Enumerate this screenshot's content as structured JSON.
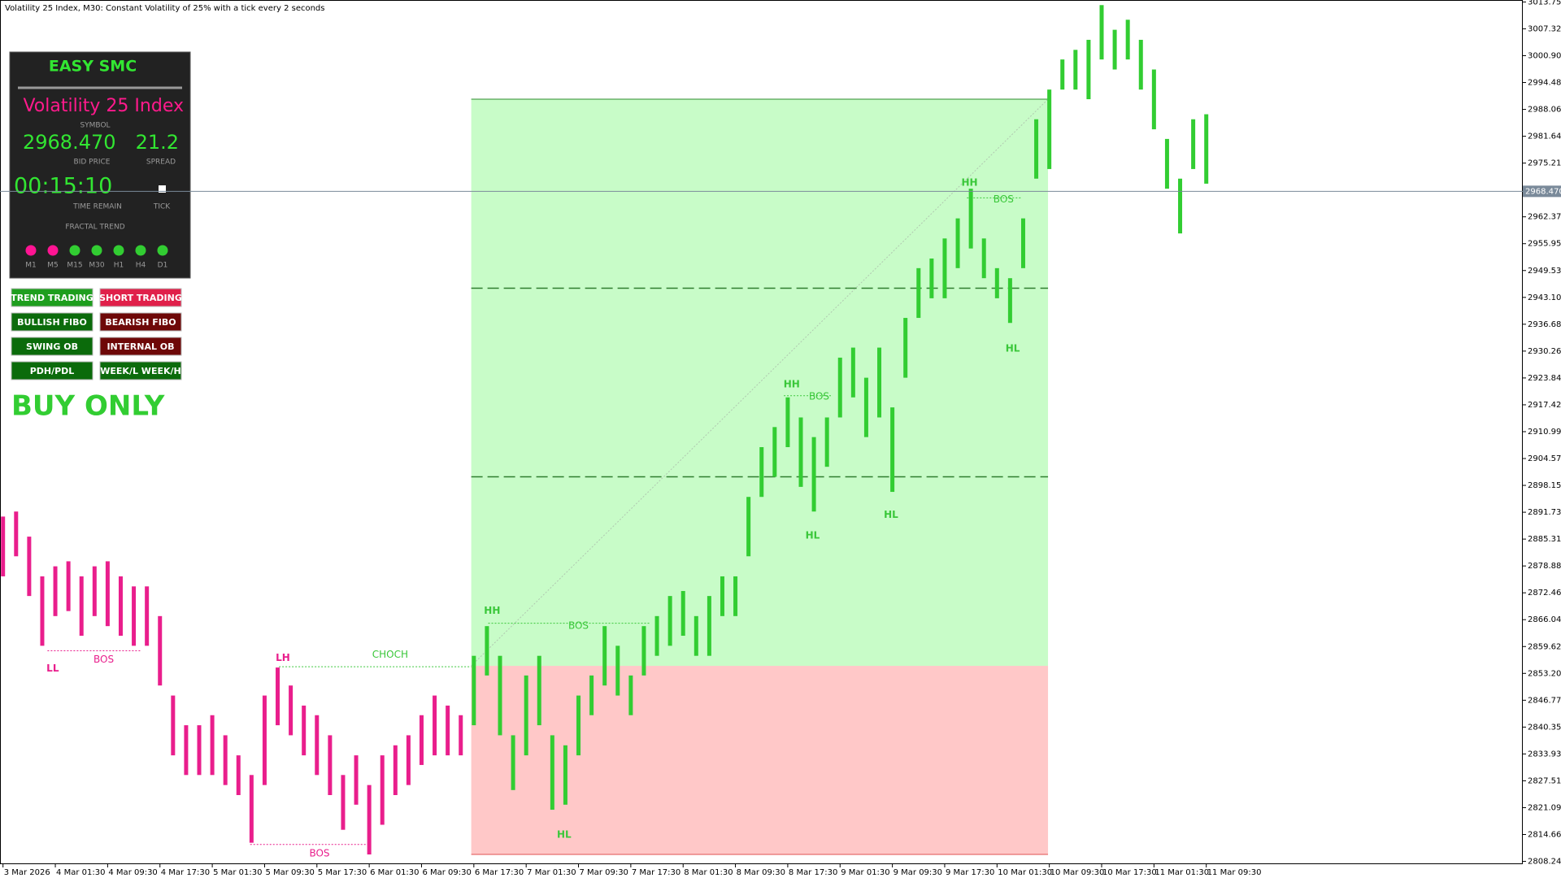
{
  "header": "Volatility 25 Index, M30:  Constant Volatility of 25% with a tick every 2 seconds",
  "panel": {
    "title": "EASY SMC",
    "symbol": "Volatility 25 Index",
    "symbol_label": "SYMBOL",
    "bid": "2968.470",
    "bid_label": "BID PRICE",
    "spread": "21.2",
    "spread_label": "SPREAD",
    "time": "00:15:10",
    "time_label": "TIME REMAIN",
    "tick_label": "TICK",
    "trend_label": "FRACTAL TREND",
    "trend": [
      {
        "name": "M1",
        "color": "#ff1493"
      },
      {
        "name": "M5",
        "color": "#ff1493"
      },
      {
        "name": "M15",
        "color": "#32cd32"
      },
      {
        "name": "M30",
        "color": "#32cd32"
      },
      {
        "name": "H1",
        "color": "#32cd32"
      },
      {
        "name": "H4",
        "color": "#32cd32"
      },
      {
        "name": "D1",
        "color": "#32cd32"
      }
    ],
    "buttons": [
      {
        "label": "TREND TRADING",
        "color": "#1e9e1e"
      },
      {
        "label": "SHORT TRADING",
        "color": "#e0204a"
      },
      {
        "label": "BULLISH FIBO",
        "color": "#0b6b0b"
      },
      {
        "label": "BEARISH FIBO",
        "color": "#6e0808"
      },
      {
        "label": "SWING OB",
        "color": "#0b6b0b"
      },
      {
        "label": "INTERNAL OB",
        "color": "#6e0808"
      },
      {
        "label": "PDH/PDL",
        "color": "#0b6b0b"
      },
      {
        "label": "WEEK/L WEEK/H",
        "color": "#0b6b0b"
      }
    ],
    "mode": "BUY ONLY"
  },
  "chart_data": {
    "type": "hlbar",
    "series": [
      {
        "color": "#e91e8c",
        "high": [
          2890.7,
          2891.9,
          2885.9,
          2876.4,
          2878.8,
          2880.0,
          2876.4,
          2878.8,
          2880.0,
          2876.4,
          2874.0,
          2874.0,
          2866.9,
          2847.9,
          2840.8,
          2840.8,
          2843.2,
          2838.4,
          2833.6,
          2828.9,
          2847.9,
          2854.6,
          2850.3,
          2845.5,
          2843.2,
          2838.4,
          2828.9,
          2833.6,
          2826.5,
          2833.6,
          2836.0,
          2838.4,
          2843.2,
          2847.9,
          2845.5,
          2843.2
        ],
        "low": [
          2876.4,
          2881.2,
          2871.7,
          2859.8,
          2866.9,
          2868.1,
          2862.2,
          2866.9,
          2864.5,
          2862.2,
          2859.8,
          2859.8,
          2850.3,
          2833.6,
          2828.9,
          2828.9,
          2828.9,
          2826.5,
          2824.1,
          2812.7,
          2826.5,
          2840.8,
          2838.4,
          2833.6,
          2828.9,
          2824.1,
          2815.8,
          2821.8,
          2809.9,
          2817.0,
          2824.1,
          2826.5,
          2831.3,
          2833.6,
          2833.6,
          2833.6
        ]
      },
      {
        "color": "#32cd32",
        "high": [
          2857.4,
          2864.5,
          2857.4,
          2838.4,
          2852.7,
          2857.4,
          2838.4,
          2836.0,
          2847.9,
          2852.7,
          2864.5,
          2859.8,
          2852.7,
          2864.5,
          2866.9,
          2871.7,
          2872.9,
          2866.9,
          2871.7,
          2876.4,
          2876.4,
          2895.4,
          2907.3,
          2912.1,
          2919.2,
          2914.4,
          2909.7,
          2914.4,
          2928.7,
          2931.1,
          2923.9,
          2931.1,
          2916.8,
          2938.2,
          2950.1,
          2952.4,
          2957.2,
          2962.0,
          2969.1,
          2957.2,
          2950.1,
          2947.7,
          2962.0,
          2985.7,
          2992.8,
          3000.0,
          3002.3,
          3004.7,
          3013.0,
          3007.1,
          3009.5,
          3004.7,
          2997.6,
          2981.0,
          2971.5,
          2985.7,
          2986.9
        ],
        "low": [
          2840.8,
          2852.7,
          2838.4,
          2825.3,
          2833.6,
          2840.8,
          2820.6,
          2821.8,
          2833.6,
          2843.2,
          2850.3,
          2847.9,
          2843.2,
          2852.7,
          2857.4,
          2859.8,
          2862.2,
          2857.4,
          2857.4,
          2866.9,
          2866.9,
          2881.2,
          2895.4,
          2900.2,
          2907.3,
          2897.8,
          2891.9,
          2902.6,
          2914.4,
          2919.2,
          2909.7,
          2914.4,
          2896.6,
          2923.9,
          2938.2,
          2942.9,
          2942.9,
          2950.1,
          2954.8,
          2947.7,
          2942.9,
          2937.0,
          2950.1,
          2971.5,
          2973.8,
          2992.8,
          2992.8,
          2990.5,
          3000.0,
          2997.6,
          3000.0,
          2992.8,
          2983.3,
          2969.1,
          2958.4,
          2973.8,
          2970.3
        ]
      }
    ],
    "xlim": [
      -0.23,
      116.2
    ],
    "ylim": [
      2807.77,
      3014.22
    ],
    "yticks": [
      3013.751,
      3007.329,
      3000.907,
      2994.485,
      2988.063,
      2981.641,
      2975.219,
      2962.375,
      2955.953,
      2949.531,
      2943.109,
      2936.687,
      2930.265,
      2923.843,
      2917.421,
      2910.999,
      2904.577,
      2898.155,
      2891.733,
      2885.311,
      2878.889,
      2872.467,
      2866.045,
      2859.623,
      2853.201,
      2846.779,
      2840.357,
      2833.935,
      2827.513,
      2821.091,
      2814.669,
      2808.247
    ],
    "xticks": [
      {
        "value": 0,
        "label": "3 Mar 2026"
      },
      {
        "value": 4,
        "label": "4 Mar 01:30"
      },
      {
        "value": 8,
        "label": "4 Mar 09:30"
      },
      {
        "value": 12,
        "label": "4 Mar 17:30"
      },
      {
        "value": 16,
        "label": "5 Mar 01:30"
      },
      {
        "value": 20,
        "label": "5 Mar 09:30"
      },
      {
        "value": 24,
        "label": "5 Mar 17:30"
      },
      {
        "value": 28,
        "label": "6 Mar 01:30"
      },
      {
        "value": 32,
        "label": "6 Mar 09:30"
      },
      {
        "value": 36,
        "label": "6 Mar 17:30"
      },
      {
        "value": 40,
        "label": "7 Mar 01:30"
      },
      {
        "value": 44,
        "label": "7 Mar 09:30"
      },
      {
        "value": 48,
        "label": "7 Mar 17:30"
      },
      {
        "value": 52,
        "label": "8 Mar 01:30"
      },
      {
        "value": 56,
        "label": "8 Mar 09:30"
      },
      {
        "value": 60,
        "label": "8 Mar 17:30"
      },
      {
        "value": 64,
        "label": "9 Mar 01:30"
      },
      {
        "value": 68,
        "label": "9 Mar 09:30"
      },
      {
        "value": 72,
        "label": "9 Mar 17:30"
      },
      {
        "value": 76,
        "label": "10 Mar 01:30"
      },
      {
        "value": 80,
        "label": "10 Mar 09:30"
      },
      {
        "value": 84,
        "label": "10 Mar 17:30"
      },
      {
        "value": 88,
        "label": "11 Mar 01:30"
      },
      {
        "value": 92,
        "label": "11 Mar 09:30"
      }
    ],
    "current_price": {
      "value": 2968.47,
      "label": "2968.470"
    },
    "zones": [
      {
        "x": [
          35.8,
          79.9
        ],
        "y": [
          2855.0,
          2990.5
        ],
        "color": "#c8fcc8"
      },
      {
        "x": [
          35.8,
          79.9
        ],
        "y": [
          2809.9,
          2855.0
        ],
        "color": "#ffc8c8"
      }
    ],
    "lines": [
      {
        "x": [
          35.8,
          79.9
        ],
        "y": [
          2990.5,
          2990.5
        ],
        "color": "#2e8b2e",
        "dash": "solid"
      },
      {
        "x": [
          35.8,
          79.9
        ],
        "y": [
          2945.3,
          2945.3
        ],
        "color": "#2e7d2e",
        "dash": "dashed"
      },
      {
        "x": [
          35.8,
          79.9
        ],
        "y": [
          2900.2,
          2900.2
        ],
        "color": "#2e7d2e",
        "dash": "dashed"
      },
      {
        "x": [
          35.8,
          79.9
        ],
        "y": [
          2855.0,
          2990.5
        ],
        "color": "#b0c8b0",
        "dash": "dotted"
      },
      {
        "x": [
          35.8,
          79.9
        ],
        "y": [
          2809.9,
          2809.9
        ],
        "color": "#e05050",
        "dash": "solid"
      },
      {
        "x": [
          3.4,
          10.5
        ],
        "y": [
          2858.6,
          2858.6
        ],
        "color": "#e91e8c",
        "dash": "dotted"
      },
      {
        "x": [
          18.9,
          28.1
        ],
        "y": [
          2812.3,
          2812.3
        ],
        "color": "#e91e8c",
        "dash": "dotted"
      },
      {
        "x": [
          21.1,
          35.8
        ],
        "y": [
          2854.8,
          2854.8
        ],
        "color": "#3ac73a",
        "dash": "dotted"
      },
      {
        "x": [
          37.1,
          49.5
        ],
        "y": [
          2865.2,
          2865.2
        ],
        "color": "#3ac73a",
        "dash": "dotted"
      },
      {
        "x": [
          59.7,
          63.3
        ],
        "y": [
          2919.6,
          2919.6
        ],
        "color": "#3ac73a",
        "dash": "dotted"
      },
      {
        "x": [
          73.7,
          77.9
        ],
        "y": [
          2966.9,
          2966.9
        ],
        "color": "#3ac73a",
        "dash": "dotted"
      }
    ],
    "annotations": [
      {
        "text": "LL",
        "x": 3.8,
        "y": 2854.3,
        "color": "#e91e8c"
      },
      {
        "text": "BOS",
        "x": 7.7,
        "y": 2856.5,
        "color": "#e91e8c"
      },
      {
        "text": "LH",
        "x": 21.4,
        "y": 2856.9,
        "color": "#e91e8c"
      },
      {
        "text": "CHOCH",
        "x": 29.6,
        "y": 2857.6,
        "color": "#3ac73a"
      },
      {
        "text": "BOS",
        "x": 24.2,
        "y": 2810.1,
        "color": "#e91e8c"
      },
      {
        "text": "HH",
        "x": 37.4,
        "y": 2868.1,
        "color": "#3ac73a"
      },
      {
        "text": "BOS",
        "x": 44,
        "y": 2864.5,
        "color": "#3ac73a"
      },
      {
        "text": "HL",
        "x": 42.9,
        "y": 2814.6,
        "color": "#3ac73a"
      },
      {
        "text": "HH",
        "x": 60.3,
        "y": 2922.3,
        "color": "#3ac73a"
      },
      {
        "text": "BOS",
        "x": 62.4,
        "y": 2919.4,
        "color": "#3ac73a"
      },
      {
        "text": "HL",
        "x": 61.9,
        "y": 2886.1,
        "color": "#3ac73a"
      },
      {
        "text": "HL",
        "x": 67.9,
        "y": 2891.1,
        "color": "#3ac73a"
      },
      {
        "text": "HH",
        "x": 73.9,
        "y": 2970.5,
        "color": "#3ac73a"
      },
      {
        "text": "BOS",
        "x": 76.5,
        "y": 2966.5,
        "color": "#3ac73a"
      },
      {
        "text": "HL",
        "x": 77.2,
        "y": 2930.8,
        "color": "#3ac73a"
      }
    ]
  }
}
